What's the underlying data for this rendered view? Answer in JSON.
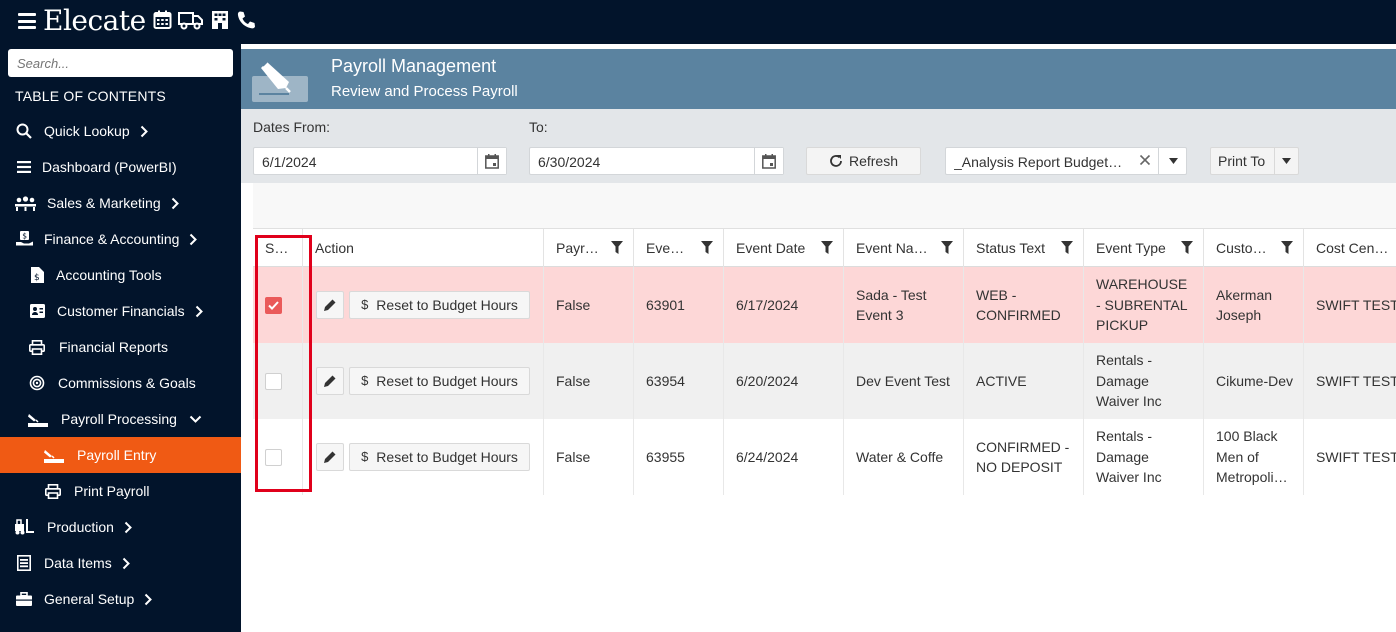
{
  "app": {
    "logo": "Elecate"
  },
  "top_icons": [
    "calendar-icon",
    "truck-icon",
    "building-icon",
    "phone-icon"
  ],
  "sidebar": {
    "search_placeholder": "Search...",
    "toc_title": "TABLE OF CONTENTS",
    "items": [
      {
        "label": "Quick Lookup",
        "icon": "search-icon",
        "chevron": "right"
      },
      {
        "label": "Dashboard (PowerBI)",
        "icon": "menu-icon",
        "chevron": ""
      },
      {
        "label": "Sales & Marketing",
        "icon": "people-icon",
        "chevron": "right"
      },
      {
        "label": "Finance & Accounting",
        "icon": "money-hand-icon",
        "chevron": "right"
      },
      {
        "label": "Accounting Tools",
        "icon": "dollar-file-icon",
        "chevron": ""
      },
      {
        "label": "Customer Financials",
        "icon": "contact-card-icon",
        "chevron": "right"
      },
      {
        "label": "Financial Reports",
        "icon": "printer-icon",
        "chevron": ""
      },
      {
        "label": "Commissions & Goals",
        "icon": "target-icon",
        "chevron": ""
      },
      {
        "label": "Payroll Processing",
        "icon": "pen-card-icon",
        "chevron": "down"
      },
      {
        "label": "Payroll Entry",
        "icon": "pen-card-icon",
        "chevron": "",
        "active": true
      },
      {
        "label": "Print Payroll",
        "icon": "printer-icon",
        "chevron": ""
      },
      {
        "label": "Production",
        "icon": "forklift-icon",
        "chevron": "right"
      },
      {
        "label": "Data Items",
        "icon": "list-box-icon",
        "chevron": "right"
      },
      {
        "label": "General Setup",
        "icon": "toolbox-icon",
        "chevron": "right"
      }
    ]
  },
  "header": {
    "title": "Payroll Management",
    "subtitle": "Review and Process Payroll"
  },
  "filters": {
    "dates_from_label": "Dates From:",
    "to_label": "To:",
    "date_from": "6/1/2024",
    "date_to": "6/30/2024",
    "refresh_label": "Refresh",
    "report_value": "_Analysis Report Budget…",
    "print_to_label": "Print To"
  },
  "grid": {
    "columns": [
      "S…",
      "Action",
      "Payr…",
      "Eve…",
      "Event Date",
      "Event Na…",
      "Status Text",
      "Event Type",
      "Custo…",
      "Cost Cen…"
    ],
    "reset_label": "Reset to Budget Hours",
    "rows": [
      {
        "selected": true,
        "payroll": "False",
        "event": "63901",
        "date": "6/17/2024",
        "name": "Sada - Test Event 3",
        "status": "WEB - CONFIRMED",
        "type": "WAREHOUSE - SUBRENTAL PICKUP",
        "customer": "Akerman Joseph",
        "cost_center": "SWIFT TEST"
      },
      {
        "selected": false,
        "payroll": "False",
        "event": "63954",
        "date": "6/20/2024",
        "name": "Dev Event Test",
        "status": "ACTIVE",
        "type": "Rentals - Damage Waiver Inc",
        "customer": "Cikume-Dev",
        "cost_center": "SWIFT TEST"
      },
      {
        "selected": false,
        "payroll": "False",
        "event": "63955",
        "date": "6/24/2024",
        "name": "Water & Coffe",
        "status": "CONFIRMED - NO DEPOSIT",
        "type": "Rentals - Damage Waiver Inc",
        "customer": "100 Black Men of Metropoli…",
        "cost_center": "SWIFT TEST"
      }
    ]
  },
  "colors": {
    "nav_bg": "#02142b",
    "active_item": "#f05a14",
    "header_band": "#5b83a0",
    "selected_row": "#fdd7d7",
    "alt_row": "#f0f0f0",
    "highlight_box": "#e0001b"
  }
}
